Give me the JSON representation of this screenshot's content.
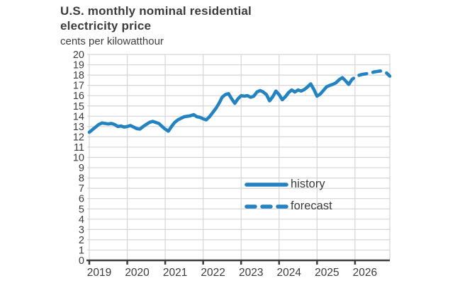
{
  "header": {
    "title_line1": "U.S. monthly nominal residential",
    "title_line2": "electricity price",
    "subtitle": "cents per kilowatthour"
  },
  "colors": {
    "line_blue": "#2383c0",
    "grid": "#d6d6d6",
    "axis": "#3c3c3c",
    "text": "#3b3b3b"
  },
  "chart_data": {
    "type": "line",
    "title": "U.S. monthly nominal residential electricity price",
    "ylabel": "cents per kilowatthour",
    "xlabel": "",
    "x_start": "2019-01",
    "x_end": "2026-12",
    "x_tick_labels": [
      "2019",
      "2020",
      "2021",
      "2022",
      "2023",
      "2024",
      "2025",
      "2026"
    ],
    "ylim": [
      0,
      20
    ],
    "y_tick_step": 1,
    "grid": true,
    "legend_position": "inside-center-right",
    "series": [
      {
        "name": "history",
        "style": "solid",
        "color": "#2383c0",
        "start_month": "2019-01",
        "values": [
          12.45,
          12.7,
          12.95,
          13.2,
          13.35,
          13.3,
          13.25,
          13.3,
          13.2,
          13.0,
          13.05,
          12.95,
          13.0,
          13.1,
          12.95,
          12.8,
          12.75,
          13.0,
          13.2,
          13.4,
          13.5,
          13.4,
          13.3,
          13.0,
          12.75,
          12.55,
          13.0,
          13.4,
          13.65,
          13.8,
          13.95,
          14.0,
          14.05,
          14.15,
          13.95,
          13.9,
          13.75,
          13.65,
          13.95,
          14.35,
          14.75,
          15.25,
          15.85,
          16.1,
          16.2,
          15.7,
          15.25,
          15.7,
          16.0,
          15.95,
          16.0,
          15.85,
          15.95,
          16.35,
          16.5,
          16.35,
          16.1,
          15.5,
          15.9,
          16.45,
          16.1,
          15.6,
          15.9,
          16.3,
          16.55,
          16.35,
          16.55,
          16.45,
          16.6,
          16.85,
          17.15,
          16.6,
          15.95,
          16.15,
          16.5,
          16.85,
          17.0,
          17.1,
          17.25,
          17.55,
          17.75,
          17.45,
          17.1
        ]
      },
      {
        "name": "forecast",
        "style": "dashed",
        "color": "#2383c0",
        "start_month": "2025-12",
        "values": [
          17.55,
          17.8,
          17.95,
          18.05,
          18.1,
          18.15,
          18.2,
          18.3,
          18.35,
          18.4,
          18.35,
          18.2,
          17.9
        ]
      }
    ]
  }
}
